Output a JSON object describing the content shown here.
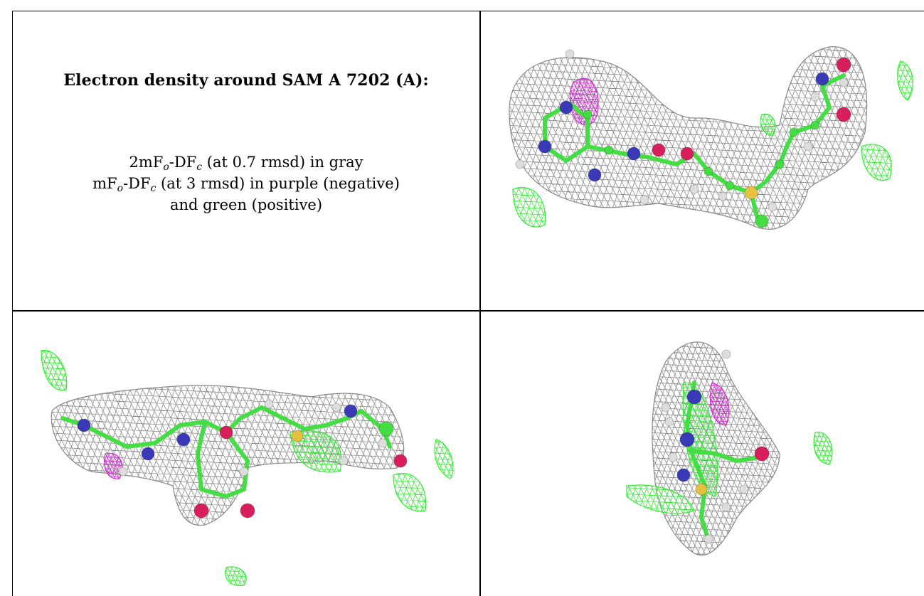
{
  "panel": {
    "title": "Electron density around SAM A 7202 (A):",
    "legend": {
      "line1": {
        "pre": "2mF",
        "sub1": "o",
        "mid": "-DF",
        "sub2": "c",
        "post": " (at 0.7 rmsd) in gray"
      },
      "line2": {
        "pre": "mF",
        "sub1": "o",
        "mid": "-DF",
        "sub2": "c",
        "post": " (at 3 rmsd) in purple (negative)"
      },
      "line3": "and green (positive)"
    }
  },
  "colors": {
    "density_2fofc": "#8a8a8a",
    "density_negative": "#cc33cc",
    "density_positive": "#33ee33",
    "carbon": "#44dd44",
    "nitrogen": "#3a3ab8",
    "oxygen": "#d81e5b",
    "sulfur": "#e8c040",
    "hydrogen": "#dddddd"
  },
  "views": [
    {
      "name": "view-top-right"
    },
    {
      "name": "view-bottom-left"
    },
    {
      "name": "view-bottom-right"
    }
  ]
}
